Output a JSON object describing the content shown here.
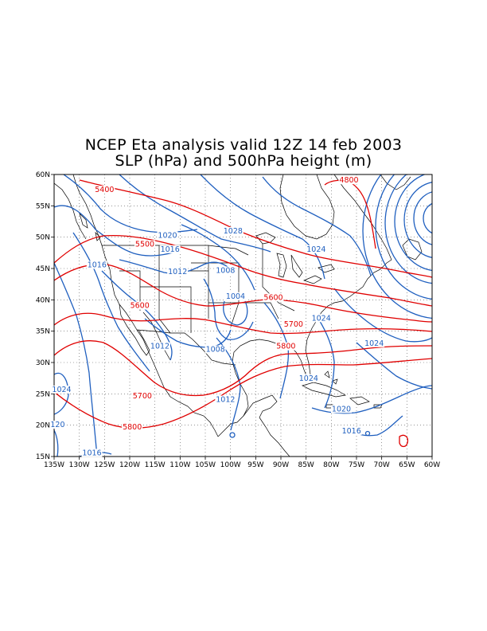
{
  "title": {
    "line1": "NCEP Eta analysis valid 12Z 14 feb 2003",
    "line2": "SLP (hPa) and 500hPa height (m)"
  },
  "map": {
    "lon_range": [
      -135,
      -60
    ],
    "lat_range": [
      15,
      60
    ],
    "grid": true
  },
  "axes": {
    "x_ticks": [
      {
        "value": -135,
        "label": "135W"
      },
      {
        "value": -130,
        "label": "130W"
      },
      {
        "value": -125,
        "label": "125W"
      },
      {
        "value": -120,
        "label": "120W"
      },
      {
        "value": -115,
        "label": "115W"
      },
      {
        "value": -110,
        "label": "110W"
      },
      {
        "value": -105,
        "label": "105W"
      },
      {
        "value": -100,
        "label": "100W"
      },
      {
        "value": -95,
        "label": "95W"
      },
      {
        "value": -90,
        "label": "90W"
      },
      {
        "value": -85,
        "label": "85W"
      },
      {
        "value": -80,
        "label": "80W"
      },
      {
        "value": -75,
        "label": "75W"
      },
      {
        "value": -70,
        "label": "70W"
      },
      {
        "value": -65,
        "label": "65W"
      },
      {
        "value": -60,
        "label": "60W"
      }
    ],
    "y_ticks": [
      {
        "value": 15,
        "label": "15N"
      },
      {
        "value": 20,
        "label": "20N"
      },
      {
        "value": 25,
        "label": "25N"
      },
      {
        "value": 30,
        "label": "30N"
      },
      {
        "value": 35,
        "label": "35N"
      },
      {
        "value": 40,
        "label": "40N"
      },
      {
        "value": 45,
        "label": "45N"
      },
      {
        "value": 50,
        "label": "50N"
      },
      {
        "value": 55,
        "label": "55N"
      },
      {
        "value": 60,
        "label": "60N"
      }
    ]
  },
  "colors": {
    "slp": "#1f5fbf",
    "height": "#e00000",
    "coast": "#000000",
    "grid": "#555555"
  },
  "height_labels": [
    {
      "text": "5400",
      "lon": -125,
      "lat": 57.2
    },
    {
      "text": "4800",
      "lon": -76.5,
      "lat": 58.7
    },
    {
      "text": "5500",
      "lon": -117,
      "lat": 48.5
    },
    {
      "text": "5600",
      "lon": -118,
      "lat": 38.7
    },
    {
      "text": "5600",
      "lon": -91.5,
      "lat": 40
    },
    {
      "text": "5700",
      "lon": -87.5,
      "lat": 35.7
    },
    {
      "text": "5800",
      "lon": -89,
      "lat": 32.2
    },
    {
      "text": "5700",
      "lon": -117.5,
      "lat": 24.3
    },
    {
      "text": "5800",
      "lon": -119.5,
      "lat": 19.3
    }
  ],
  "slp_labels": [
    {
      "text": "1020",
      "lon": -112.5,
      "lat": 49.9
    },
    {
      "text": "1028",
      "lon": -99.5,
      "lat": 50.6
    },
    {
      "text": "1016",
      "lon": -112,
      "lat": 47.7
    },
    {
      "text": "1016",
      "lon": -126.5,
      "lat": 45.2
    },
    {
      "text": "1012",
      "lon": -110.5,
      "lat": 44.1
    },
    {
      "text": "1008",
      "lon": -101,
      "lat": 44.3
    },
    {
      "text": "1004",
      "lon": -99,
      "lat": 40.2
    },
    {
      "text": "1024",
      "lon": -83,
      "lat": 47.7
    },
    {
      "text": "1024",
      "lon": -82,
      "lat": 36.7
    },
    {
      "text": "1024",
      "lon": -71.5,
      "lat": 32.7
    },
    {
      "text": "1024",
      "lon": -84.5,
      "lat": 27.1
    },
    {
      "text": "1012",
      "lon": -114,
      "lat": 32.2
    },
    {
      "text": "1008",
      "lon": -103,
      "lat": 31.7
    },
    {
      "text": "1012",
      "lon": -101,
      "lat": 23.7
    },
    {
      "text": "1020",
      "lon": -78,
      "lat": 22.2
    },
    {
      "text": "1016",
      "lon": -76,
      "lat": 18.7
    },
    {
      "text": "1024",
      "lon": -133.5,
      "lat": 25.3
    },
    {
      "text": "120",
      "lon": -134.3,
      "lat": 19.7
    },
    {
      "text": "1016",
      "lon": -127.5,
      "lat": 15.2
    }
  ]
}
